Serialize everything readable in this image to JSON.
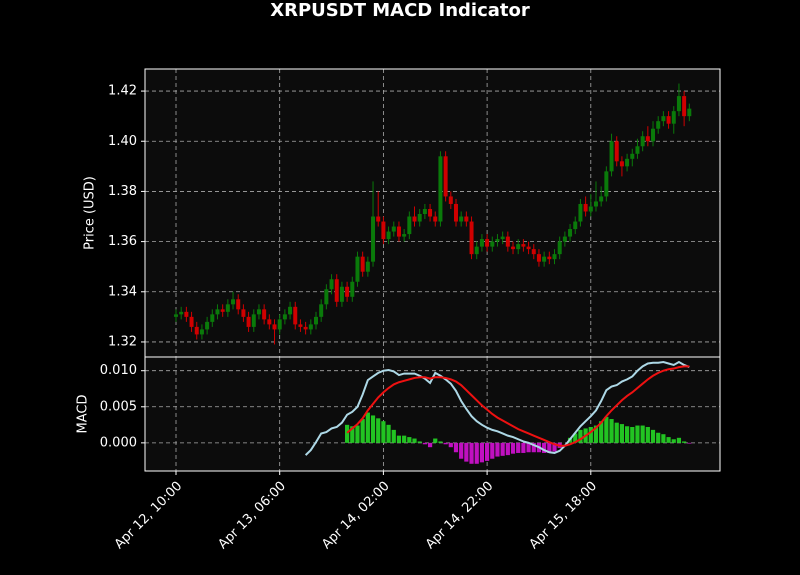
{
  "chart_data": [
    {
      "type": "candlestick",
      "title": "XRPUSDT MACD Indicator",
      "ylabel": "Price (USD)",
      "grid": true,
      "up_color": "#0a7a0a",
      "down_color": "#d00000",
      "x": [
        "Apr 12, 10:00",
        "Apr 12, 11:00",
        "Apr 12, 12:00",
        "Apr 12, 13:00",
        "Apr 12, 14:00",
        "Apr 12, 15:00",
        "Apr 12, 16:00",
        "Apr 12, 17:00",
        "Apr 12, 18:00",
        "Apr 12, 19:00",
        "Apr 12, 20:00",
        "Apr 12, 21:00",
        "Apr 12, 22:00",
        "Apr 12, 23:00",
        "Apr 13, 00:00",
        "Apr 13, 01:00",
        "Apr 13, 02:00",
        "Apr 13, 03:00",
        "Apr 13, 04:00",
        "Apr 13, 05:00",
        "Apr 13, 06:00",
        "Apr 13, 07:00",
        "Apr 13, 08:00",
        "Apr 13, 09:00",
        "Apr 13, 10:00",
        "Apr 13, 11:00",
        "Apr 13, 12:00",
        "Apr 13, 13:00",
        "Apr 13, 14:00",
        "Apr 13, 15:00",
        "Apr 13, 16:00",
        "Apr 13, 17:00",
        "Apr 13, 18:00",
        "Apr 13, 19:00",
        "Apr 13, 20:00",
        "Apr 13, 21:00",
        "Apr 13, 22:00",
        "Apr 13, 23:00",
        "Apr 14, 00:00",
        "Apr 14, 01:00",
        "Apr 14, 02:00",
        "Apr 14, 03:00",
        "Apr 14, 04:00",
        "Apr 14, 05:00",
        "Apr 14, 06:00",
        "Apr 14, 07:00",
        "Apr 14, 08:00",
        "Apr 14, 09:00",
        "Apr 14, 10:00",
        "Apr 14, 11:00",
        "Apr 14, 12:00",
        "Apr 14, 13:00",
        "Apr 14, 14:00",
        "Apr 14, 15:00",
        "Apr 14, 16:00",
        "Apr 14, 17:00",
        "Apr 14, 18:00",
        "Apr 14, 19:00",
        "Apr 14, 20:00",
        "Apr 14, 21:00",
        "Apr 14, 22:00",
        "Apr 14, 23:00",
        "Apr 15, 00:00",
        "Apr 15, 01:00",
        "Apr 15, 02:00",
        "Apr 15, 03:00",
        "Apr 15, 04:00",
        "Apr 15, 05:00",
        "Apr 15, 06:00",
        "Apr 15, 07:00",
        "Apr 15, 08:00",
        "Apr 15, 09:00",
        "Apr 15, 10:00",
        "Apr 15, 11:00",
        "Apr 15, 12:00",
        "Apr 15, 13:00",
        "Apr 15, 14:00",
        "Apr 15, 15:00",
        "Apr 15, 16:00",
        "Apr 15, 17:00",
        "Apr 15, 18:00",
        "Apr 15, 19:00",
        "Apr 15, 20:00",
        "Apr 15, 21:00",
        "Apr 15, 22:00",
        "Apr 15, 23:00",
        "Apr 16, 00:00",
        "Apr 16, 01:00",
        "Apr 16, 02:00",
        "Apr 16, 03:00",
        "Apr 16, 04:00",
        "Apr 16, 05:00",
        "Apr 16, 06:00",
        "Apr 16, 07:00",
        "Apr 16, 08:00",
        "Apr 16, 09:00",
        "Apr 16, 10:00",
        "Apr 16, 11:00",
        "Apr 16, 12:00",
        "Apr 16, 13:00"
      ],
      "open": [
        1.33,
        1.331,
        1.332,
        1.33,
        1.326,
        1.323,
        1.325,
        1.328,
        1.331,
        1.333,
        1.332,
        1.335,
        1.337,
        1.333,
        1.33,
        1.326,
        1.331,
        1.333,
        1.329,
        1.327,
        1.325,
        1.329,
        1.331,
        1.334,
        1.327,
        1.326,
        1.325,
        1.327,
        1.33,
        1.335,
        1.341,
        1.345,
        1.336,
        1.342,
        1.338,
        1.344,
        1.354,
        1.348,
        1.352,
        1.37,
        1.368,
        1.361,
        1.364,
        1.366,
        1.362,
        1.363,
        1.37,
        1.368,
        1.371,
        1.373,
        1.37,
        1.368,
        1.394,
        1.378,
        1.375,
        1.368,
        1.37,
        1.368,
        1.355,
        1.358,
        1.361,
        1.358,
        1.36,
        1.361,
        1.362,
        1.358,
        1.357,
        1.359,
        1.358,
        1.357,
        1.355,
        1.352,
        1.354,
        1.353,
        1.355,
        1.36,
        1.362,
        1.365,
        1.368,
        1.375,
        1.372,
        1.374,
        1.376,
        1.378,
        1.388,
        1.4,
        1.392,
        1.39,
        1.393,
        1.395,
        1.398,
        1.402,
        1.4,
        1.405,
        1.408,
        1.41,
        1.407,
        1.412,
        1.418,
        1.41
      ],
      "high": [
        1.333,
        1.334,
        1.334,
        1.332,
        1.328,
        1.327,
        1.33,
        1.333,
        1.335,
        1.335,
        1.337,
        1.34,
        1.339,
        1.335,
        1.332,
        1.333,
        1.335,
        1.335,
        1.331,
        1.329,
        1.331,
        1.333,
        1.336,
        1.336,
        1.329,
        1.328,
        1.329,
        1.332,
        1.337,
        1.343,
        1.347,
        1.347,
        1.344,
        1.344,
        1.346,
        1.356,
        1.356,
        1.354,
        1.384,
        1.38,
        1.37,
        1.366,
        1.368,
        1.368,
        1.365,
        1.372,
        1.374,
        1.373,
        1.375,
        1.375,
        1.372,
        1.396,
        1.396,
        1.38,
        1.377,
        1.372,
        1.372,
        1.37,
        1.36,
        1.363,
        1.363,
        1.362,
        1.363,
        1.364,
        1.364,
        1.36,
        1.361,
        1.361,
        1.36,
        1.359,
        1.357,
        1.356,
        1.356,
        1.357,
        1.362,
        1.364,
        1.367,
        1.37,
        1.377,
        1.378,
        1.379,
        1.384,
        1.382,
        1.39,
        1.403,
        1.402,
        1.394,
        1.395,
        1.397,
        1.401,
        1.404,
        1.406,
        1.408,
        1.41,
        1.412,
        1.412,
        1.414,
        1.423,
        1.42,
        1.415
      ],
      "low": [
        1.328,
        1.329,
        1.328,
        1.324,
        1.321,
        1.321,
        1.323,
        1.326,
        1.329,
        1.33,
        1.33,
        1.333,
        1.331,
        1.328,
        1.324,
        1.324,
        1.329,
        1.327,
        1.325,
        1.319,
        1.323,
        1.327,
        1.329,
        1.325,
        1.324,
        1.323,
        1.323,
        1.325,
        1.328,
        1.333,
        1.339,
        1.334,
        1.334,
        1.336,
        1.336,
        1.342,
        1.346,
        1.346,
        1.35,
        1.366,
        1.359,
        1.359,
        1.362,
        1.36,
        1.36,
        1.361,
        1.366,
        1.366,
        1.369,
        1.368,
        1.366,
        1.366,
        1.376,
        1.373,
        1.366,
        1.366,
        1.366,
        1.353,
        1.353,
        1.356,
        1.356,
        1.356,
        1.358,
        1.359,
        1.356,
        1.355,
        1.355,
        1.356,
        1.355,
        1.353,
        1.35,
        1.35,
        1.351,
        1.351,
        1.353,
        1.358,
        1.36,
        1.363,
        1.366,
        1.37,
        1.37,
        1.372,
        1.374,
        1.376,
        1.386,
        1.39,
        1.386,
        1.388,
        1.39,
        1.393,
        1.396,
        1.398,
        1.398,
        1.403,
        1.406,
        1.405,
        1.403,
        1.41,
        1.406,
        1.408
      ],
      "close": [
        1.331,
        1.332,
        1.33,
        1.326,
        1.323,
        1.325,
        1.328,
        1.331,
        1.333,
        1.332,
        1.335,
        1.337,
        1.333,
        1.33,
        1.326,
        1.331,
        1.333,
        1.329,
        1.327,
        1.325,
        1.329,
        1.331,
        1.334,
        1.327,
        1.326,
        1.325,
        1.327,
        1.33,
        1.335,
        1.341,
        1.345,
        1.336,
        1.342,
        1.338,
        1.344,
        1.354,
        1.348,
        1.352,
        1.37,
        1.368,
        1.361,
        1.364,
        1.366,
        1.362,
        1.363,
        1.37,
        1.368,
        1.371,
        1.373,
        1.37,
        1.368,
        1.394,
        1.378,
        1.375,
        1.368,
        1.37,
        1.368,
        1.355,
        1.358,
        1.361,
        1.358,
        1.36,
        1.361,
        1.362,
        1.358,
        1.357,
        1.359,
        1.358,
        1.357,
        1.355,
        1.352,
        1.354,
        1.353,
        1.355,
        1.36,
        1.362,
        1.365,
        1.368,
        1.375,
        1.372,
        1.374,
        1.376,
        1.378,
        1.388,
        1.4,
        1.392,
        1.39,
        1.393,
        1.395,
        1.398,
        1.402,
        1.4,
        1.405,
        1.408,
        1.41,
        1.407,
        1.412,
        1.418,
        1.41,
        1.413
      ],
      "ylim": [
        1.314,
        1.4288
      ],
      "yticks": [
        1.32,
        1.34,
        1.36,
        1.38,
        {
          "value": 1.4,
          "label": "1.40"
        },
        1.42
      ]
    },
    {
      "type": "macd",
      "ylabel": "MACD",
      "grid": true,
      "series": [
        {
          "type": "line",
          "color": "#add8e6",
          "values": [
            null,
            null,
            null,
            null,
            null,
            null,
            null,
            null,
            null,
            null,
            null,
            null,
            null,
            null,
            null,
            null,
            null,
            null,
            null,
            null,
            null,
            null,
            null,
            null,
            null,
            -0.0017,
            -0.001,
            0.0001,
            0.0013,
            0.0015,
            0.002,
            0.0022,
            0.0028,
            0.0039,
            0.0043,
            0.005,
            0.0067,
            0.0087,
            0.0092,
            0.0097,
            0.01,
            0.0101,
            0.0099,
            0.0094,
            0.0096,
            0.0096,
            0.0096,
            0.0093,
            0.0089,
            0.0083,
            0.0097,
            0.0093,
            0.0088,
            0.0082,
            0.0072,
            0.0058,
            0.0047,
            0.0037,
            0.003,
            0.0025,
            0.0021,
            0.0018,
            0.0016,
            0.0013,
            0.001,
            0.0008,
            0.0005,
            0.0002,
            0,
            -0.0003,
            -0.0006,
            -0.001,
            -0.0013,
            -0.0014,
            -0.0011,
            -0.0004,
            0.0005,
            0.0014,
            0.0023,
            0.003,
            0.0037,
            0.0045,
            0.0058,
            0.0073,
            0.0078,
            0.008,
            0.0085,
            0.0088,
            0.0092,
            0.01,
            0.0106,
            0.011,
            0.0111,
            0.0111,
            0.0112,
            0.011,
            0.0108,
            0.0112,
            0.0108,
            0.0105
          ]
        },
        {
          "type": "line",
          "color": "#ee1111",
          "values": [
            null,
            null,
            null,
            null,
            null,
            null,
            null,
            null,
            null,
            null,
            null,
            null,
            null,
            null,
            null,
            null,
            null,
            null,
            null,
            null,
            null,
            null,
            null,
            null,
            null,
            null,
            null,
            null,
            null,
            null,
            null,
            null,
            null,
            0.0014,
            0.002,
            0.0026,
            0.0034,
            0.0045,
            0.0054,
            0.0063,
            0.007,
            0.0076,
            0.0081,
            0.0084,
            0.0086,
            0.0088,
            0.009,
            0.0091,
            0.0091,
            0.0089,
            0.0091,
            0.0091,
            0.009,
            0.0088,
            0.0085,
            0.008,
            0.0073,
            0.0066,
            0.0059,
            0.0052,
            0.0046,
            0.004,
            0.0035,
            0.0031,
            0.0027,
            0.0023,
            0.0019,
            0.0016,
            0.0013,
            0.001,
            0.0007,
            0.0004,
            0.0001,
            -0.0002,
            -0.0004,
            -0.0004,
            -0.0002,
            0.0001,
            0.0005,
            0.001,
            0.0015,
            0.0021,
            0.0028,
            0.0037,
            0.0045,
            0.0052,
            0.0059,
            0.0065,
            0.007,
            0.0076,
            0.0082,
            0.0088,
            0.0093,
            0.0097,
            0.01,
            0.0102,
            0.0103,
            0.0105,
            0.0106,
            0.0106
          ]
        },
        {
          "type": "bar",
          "color": "#22c322",
          "negative_color": "#c010c0",
          "values": [
            null,
            null,
            null,
            null,
            null,
            null,
            null,
            null,
            null,
            null,
            null,
            null,
            null,
            null,
            null,
            null,
            null,
            null,
            null,
            null,
            null,
            null,
            null,
            null,
            null,
            null,
            null,
            null,
            null,
            null,
            null,
            null,
            null,
            0.0025,
            0.0023,
            0.0024,
            0.0033,
            0.0042,
            0.0038,
            0.0034,
            0.003,
            0.0025,
            0.0018,
            0.001,
            0.001,
            0.0008,
            0.0006,
            0.0002,
            -0.0002,
            -0.0006,
            0.0006,
            0.0002,
            -0.0002,
            -0.0006,
            -0.0013,
            -0.0022,
            -0.0026,
            -0.0029,
            -0.0029,
            -0.0027,
            -0.0025,
            -0.0022,
            -0.0019,
            -0.0018,
            -0.0017,
            -0.0015,
            -0.0014,
            -0.0014,
            -0.0013,
            -0.0013,
            -0.0013,
            -0.0014,
            -0.0014,
            -0.0012,
            -0.0007,
            0,
            0.0007,
            0.0013,
            0.0018,
            0.002,
            0.0022,
            0.0024,
            0.003,
            0.0036,
            0.0033,
            0.0028,
            0.0026,
            0.0023,
            0.0022,
            0.0024,
            0.0024,
            0.0022,
            0.0018,
            0.0014,
            0.0012,
            0.0008,
            0.0005,
            0.0007,
            0.0002,
            -0.0001
          ]
        }
      ],
      "ylim": [
        -0.0039,
        0.0119
      ],
      "yticks": [
        {
          "value": 0,
          "label": "0.000"
        },
        {
          "value": 0.005,
          "label": "0.005"
        },
        {
          "value": 0.01,
          "label": "0.010"
        }
      ],
      "xticks": [
        "Apr 12, 10:00",
        "Apr 13, 06:00",
        "Apr 14, 02:00",
        "Apr 14, 22:00",
        "Apr 15, 18:00"
      ]
    }
  ]
}
